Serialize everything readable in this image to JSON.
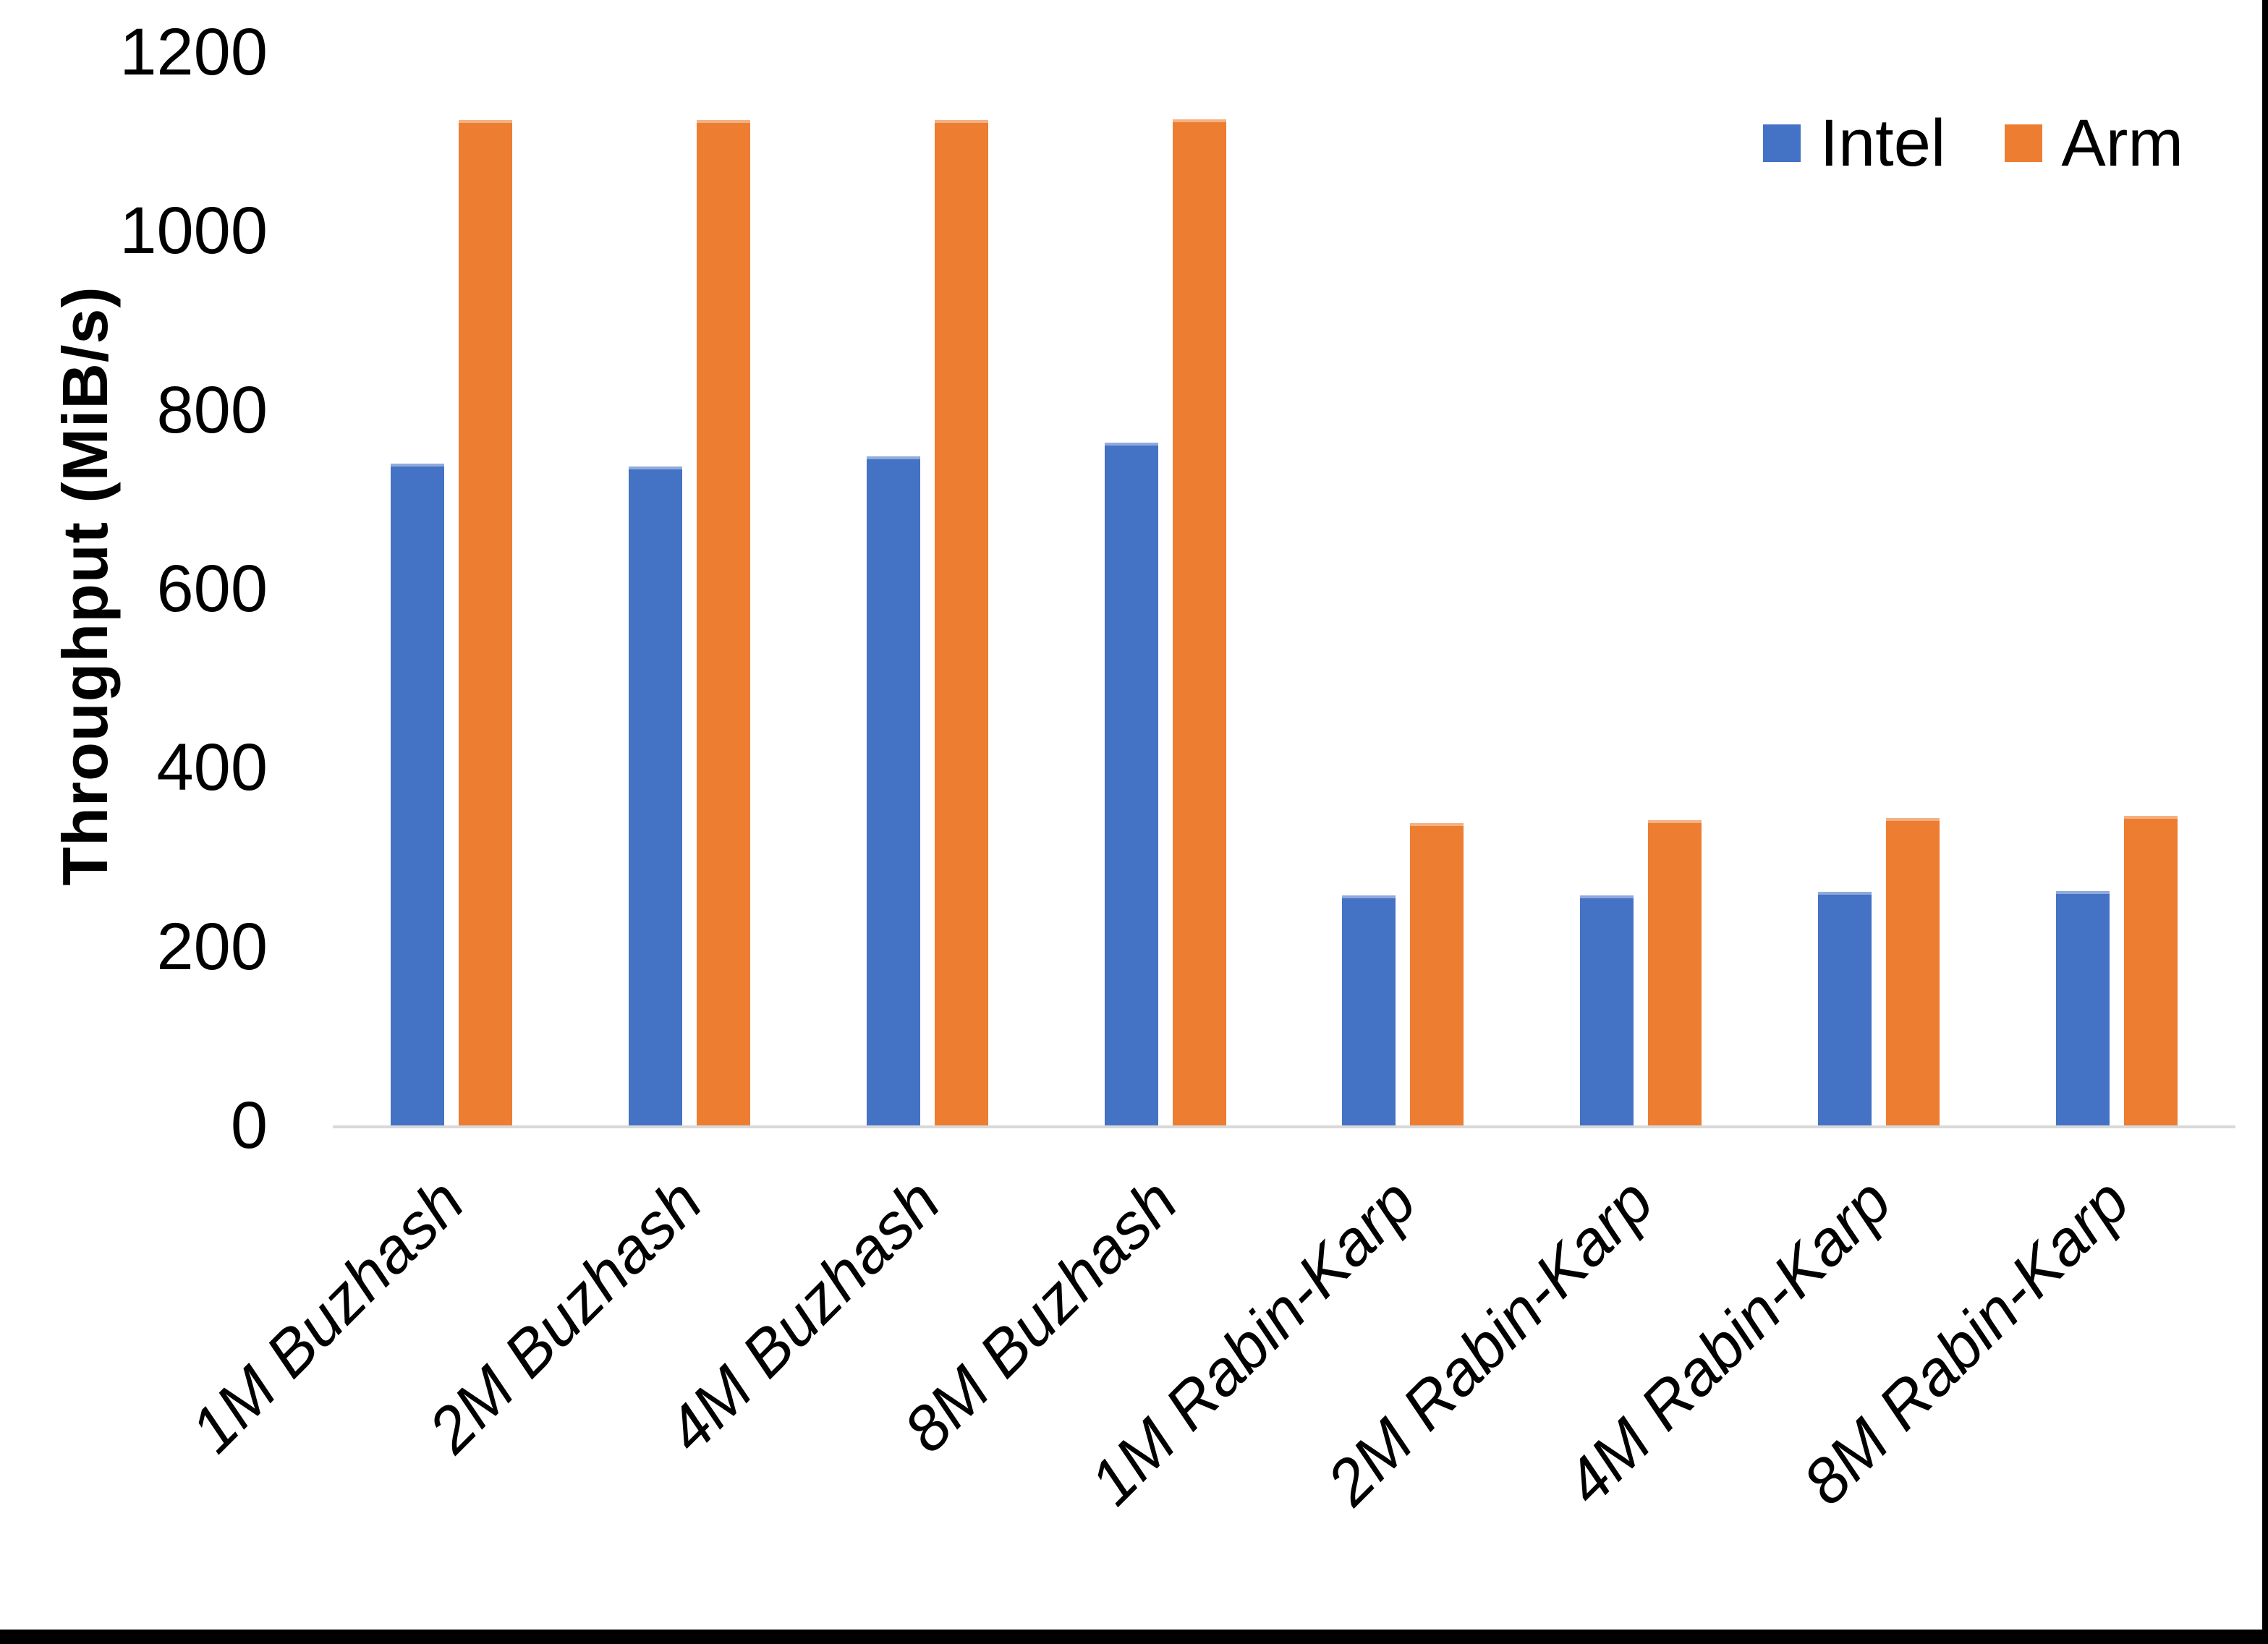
{
  "chart_data": {
    "type": "bar",
    "title": "",
    "xlabel": "",
    "ylabel": "Throughput (MiB/s)",
    "ylim": [
      0,
      1200
    ],
    "y_ticks": [
      0,
      200,
      400,
      600,
      800,
      1000,
      1200
    ],
    "grid": false,
    "legend_position": "top-right",
    "categories": [
      "1M Buzhash",
      "2M Buzhash",
      "4M Buzhash",
      "8M Buzhash",
      "1M Rabin-Karp",
      "2M Rabin-Karp",
      "4M Rabin-Karp",
      "8M Rabin-Karp"
    ],
    "series": [
      {
        "name": "Intel",
        "color": "#4472C4",
        "edge_color": "#8FAADC",
        "values": [
          740,
          737,
          748,
          763,
          257,
          257,
          261,
          262
        ]
      },
      {
        "name": "Arm",
        "color": "#ED7D31",
        "edge_color": "#F4B183",
        "values": [
          1124,
          1124,
          1124,
          1125,
          338,
          341,
          344,
          346
        ]
      }
    ]
  },
  "colors": {
    "axis_line": "#D9D9D9",
    "text": "#000000",
    "frame_edge": "#000000"
  }
}
